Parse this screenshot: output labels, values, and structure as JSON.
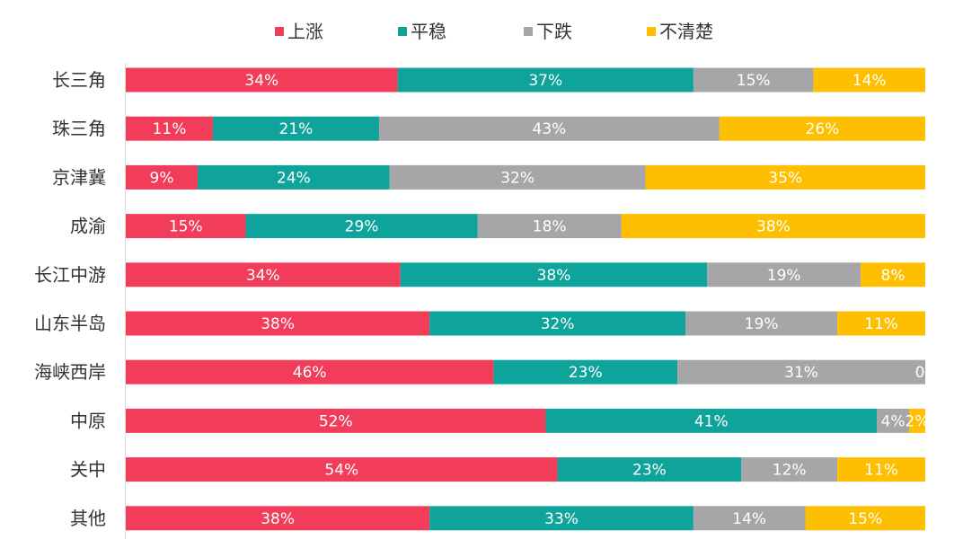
{
  "chart_data": {
    "type": "bar",
    "orientation": "horizontal",
    "stacked": true,
    "categories": [
      "长三角",
      "珠三角",
      "京津冀",
      "成渝",
      "长江中游",
      "山东半岛",
      "海峡西岸",
      "中原",
      "关中",
      "其他"
    ],
    "series": [
      {
        "name": "上涨",
        "color": "#f23d5a",
        "values": [
          34,
          11,
          9,
          15,
          34,
          38,
          46,
          52,
          54,
          38
        ],
        "labels": [
          "34%",
          "11%",
          "9%",
          "15%",
          "34%",
          "38%",
          "46%",
          "52%",
          "54%",
          "38%"
        ]
      },
      {
        "name": "平稳",
        "color": "#0ea39b",
        "values": [
          37,
          21,
          24,
          29,
          38,
          32,
          23,
          41,
          23,
          33
        ],
        "labels": [
          "37%",
          "21%",
          "24%",
          "29%",
          "38%",
          "32%",
          "23%",
          "41%",
          "23%",
          "33%"
        ]
      },
      {
        "name": "下跌",
        "color": "#a6a5a7",
        "values": [
          15,
          43,
          32,
          18,
          19,
          19,
          31,
          4,
          12,
          14
        ],
        "labels": [
          "15%",
          "43%",
          "32%",
          "18%",
          "19%",
          "19%",
          "31%",
          "4%",
          "12%",
          "14%"
        ]
      },
      {
        "name": "不清楚",
        "color": "#fdbf00",
        "values": [
          14,
          26,
          35,
          38,
          8,
          11,
          0,
          2,
          11,
          15
        ],
        "labels": [
          "14%",
          "26%",
          "35%",
          "38%",
          "8%",
          "11%",
          "0",
          "2%",
          "11%",
          "15%"
        ]
      }
    ],
    "legend_position": "top",
    "xlim": [
      0,
      100
    ],
    "grid": false
  }
}
